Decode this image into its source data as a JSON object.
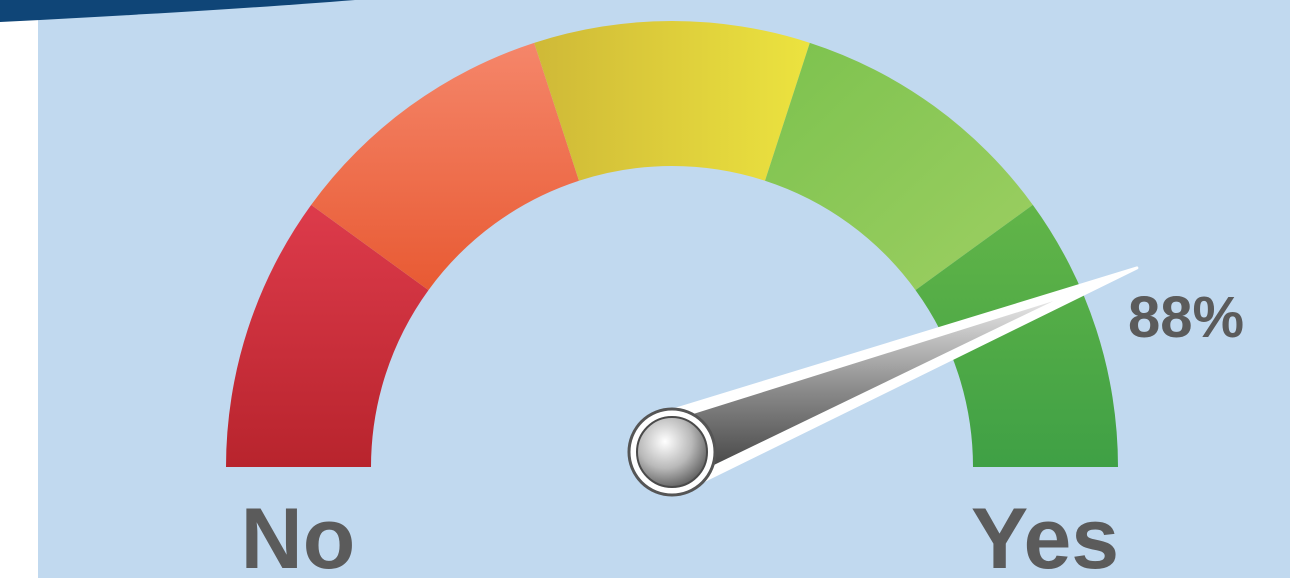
{
  "gauge": {
    "value_percent": 88,
    "value_label": "88%",
    "left_label": "No",
    "right_label": "Yes",
    "segments": [
      {
        "color_top": "#dd3b4b",
        "color_bottom": "#b8242d"
      },
      {
        "color_top": "#f5866a",
        "color_bottom": "#e85a33"
      },
      {
        "color_top": "#cfb937",
        "color_bottom": "#ece33f"
      },
      {
        "color_top": "#7cc24e",
        "color_bottom": "#9dcf62"
      },
      {
        "color_top": "#62b548",
        "color_bottom": "#3fa045"
      }
    ],
    "background_color": "#c1d9ef",
    "header_color": "#0f4577",
    "label_color": "#5b5b5b"
  }
}
